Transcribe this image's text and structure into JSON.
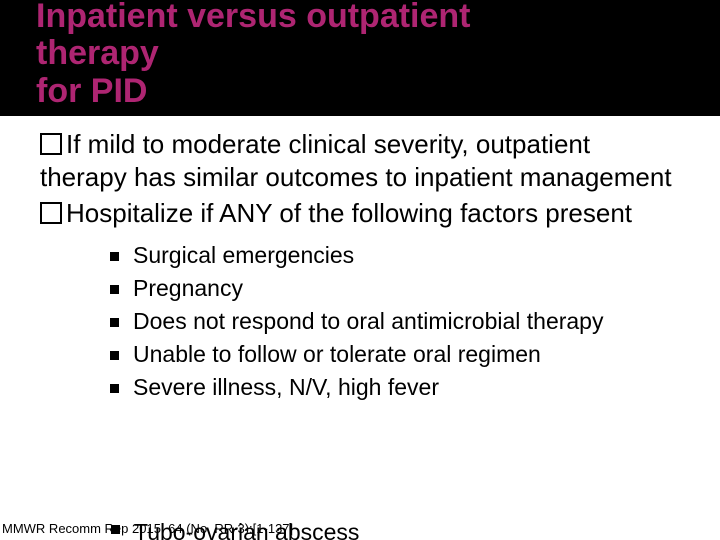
{
  "title": {
    "line1": "Inpatient versus outpatient",
    "line2": "therapy",
    "line3": "for PID",
    "color": "#ae2572",
    "bg": "#000000",
    "fontsize": 34
  },
  "main_points": [
    "If mild to moderate clinical severity, outpatient therapy has similar outcomes to inpatient management",
    "Hospitalize if ANY of the following factors present"
  ],
  "sub_points": [
    "Surgical emergencies",
    "Pregnancy",
    "Does not respond to oral antimicrobial therapy",
    "Unable to follow or tolerate oral regimen",
    "Severe illness, N/V, high fever"
  ],
  "partial_sub": "Tubo-ovarian abscess",
  "citation": "MMWR Recomm Rep 2015; 64 (No. RR-3):[1-137]",
  "main_fontsize": 26,
  "sub_fontsize": 23,
  "citation_fontsize": 13
}
